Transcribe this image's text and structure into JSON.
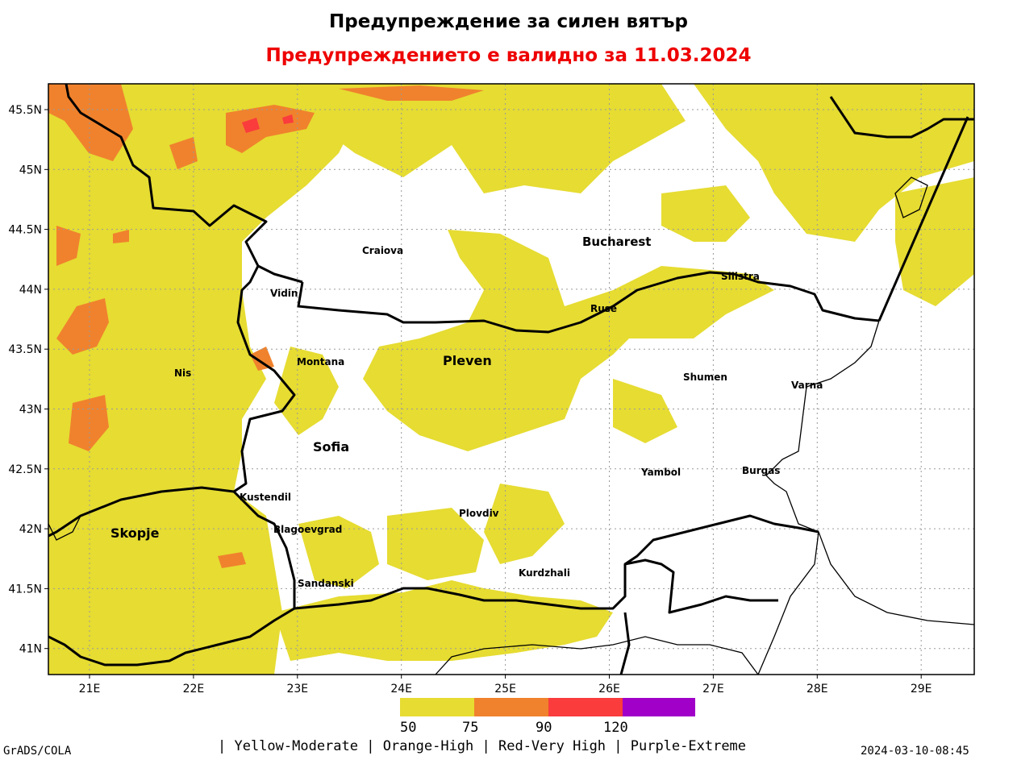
{
  "header": {
    "title": "Предупреждение за силен вятър",
    "subtitle": "Предупреждението е валидно за 11.03.2024"
  },
  "map": {
    "lat_labels": [
      "45.5N",
      "45N",
      "44.5N",
      "44N",
      "43.5N",
      "43N",
      "42.5N",
      "42N",
      "41.5N",
      "41N"
    ],
    "lon_labels": [
      "21E",
      "22E",
      "23E",
      "24E",
      "25E",
      "26E",
      "27E",
      "28E",
      "29E"
    ],
    "cities": {
      "craiova": "Craiova",
      "bucharest": "Bucharest",
      "silistra": "Silistra",
      "vidin": "Vidin",
      "ruse": "Ruse",
      "montana": "Montana",
      "pleven": "Pleven",
      "nis": "Nis",
      "shumen": "Shumen",
      "varna": "Varna",
      "sofia": "Sofia",
      "yambol": "Yambol",
      "burgas": "Burgas",
      "kustendil": "Kustendil",
      "plovdiv": "Plovdiv",
      "skopje": "Skopje",
      "blagoevgrad": "Blagoevgrad",
      "kurdzhali": "Kurdzhali",
      "sandanski": "Sandanski"
    },
    "colors": {
      "moderate": "#e6dc32",
      "high": "#f0822d",
      "very_high": "#fa3c3c",
      "extreme": "#a000c8"
    }
  },
  "legend": {
    "ticks": [
      "50",
      "75",
      "90",
      "120"
    ],
    "note": "| Yellow-Moderate | Orange-High | Red-Very High | Purple-Extreme"
  },
  "footer": {
    "left": "GrADS/COLA",
    "right": "2024-03-10-08:45"
  }
}
